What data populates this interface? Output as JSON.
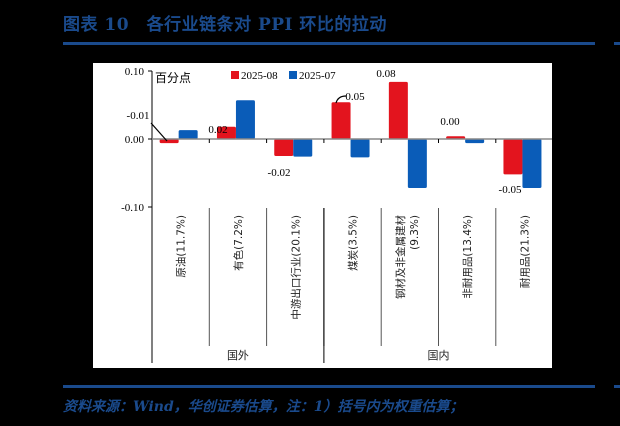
{
  "header": {
    "title": "图表 10　各行业链条对 PPI 环比的拉动"
  },
  "footer": {
    "source": "资料来源：Wind，华创证券估算，注：1）括号内为权重估算；"
  },
  "colors": {
    "series_2025_08": "#e3141e",
    "series_2025_07": "#0a5cb8",
    "brand": "#1a4a8c"
  },
  "chart_data": {
    "type": "bar",
    "title": "各行业链条对PPI环比的拉动",
    "unit_label": "百分点",
    "xlabel": "",
    "ylabel": "",
    "ylim": [
      -0.1,
      0.1
    ],
    "yticks": [
      "0.10",
      "0.00",
      "-0.10"
    ],
    "legend": [
      "2025-08",
      "2025-07"
    ],
    "legend_position": "top",
    "grid": false,
    "categories": [
      "原油(11.7%)",
      "有色(7.2%)",
      "中游出口行业(20.1%)",
      "煤炭(3.5%)",
      "钢材及非金属建材(9.3%)",
      "非耐用品(13.4%)",
      "耐用品(21.3%)"
    ],
    "groups": [
      {
        "label": "国外",
        "categories": [
          "原油(11.7%)",
          "有色(7.2%)",
          "中游出口行业(20.1%)"
        ]
      },
      {
        "label": "国内",
        "categories": [
          "煤炭(3.5%)",
          "钢材及非金属建材(9.3%)",
          "非耐用品(13.4%)",
          "耐用品(21.3%)"
        ]
      }
    ],
    "series": [
      {
        "name": "2025-08",
        "values": [
          -0.006,
          0.018,
          -0.025,
          0.054,
          0.084,
          0.004,
          -0.052
        ]
      },
      {
        "name": "2025-07",
        "values": [
          0.013,
          0.057,
          -0.026,
          -0.027,
          -0.072,
          -0.006,
          -0.072
        ]
      }
    ],
    "data_labels": [
      {
        "category": "原油(11.7%)",
        "text": "-0.01"
      },
      {
        "category": "有色(7.2%)",
        "text": "0.02"
      },
      {
        "category": "中游出口行业(20.1%)",
        "text": "-0.02"
      },
      {
        "category": "煤炭(3.5%)",
        "text": "0.05"
      },
      {
        "category": "钢材及非金属建材(9.3%)",
        "text": "0.08"
      },
      {
        "category": "非耐用品(13.4%)",
        "text": "0.00"
      },
      {
        "category": "耐用品(21.3%)",
        "text": "-0.05"
      }
    ]
  }
}
